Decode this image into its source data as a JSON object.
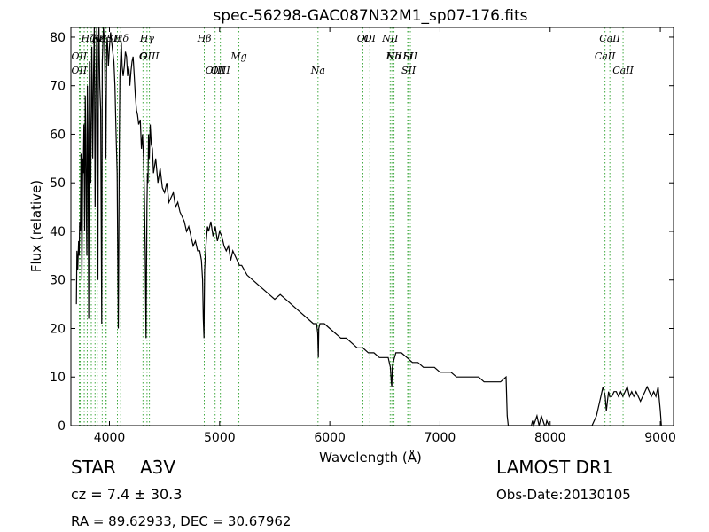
{
  "chart_data": {
    "type": "line",
    "title": "spec-56298-GAC087N32M1_sp07-176.fits",
    "xlabel": "Wavelength (Å)",
    "ylabel": "Flux (relative)",
    "xlim": [
      3650,
      9120
    ],
    "ylim": [
      0,
      82
    ],
    "xticks": [
      4000,
      5000,
      6000,
      7000,
      8000,
      9000
    ],
    "yticks": [
      0,
      10,
      20,
      30,
      40,
      50,
      60,
      70,
      80
    ],
    "grid": false,
    "line_color": "#000000",
    "marker_color": "#2ca02c",
    "series": [
      {
        "x": [
          3700,
          3705,
          3712,
          3720,
          3725,
          3730,
          3736,
          3742,
          3750,
          3758,
          3762,
          3768,
          3775,
          3780,
          3785,
          3790,
          3795,
          3800,
          3805,
          3812,
          3818,
          3822,
          3830,
          3835,
          3840,
          3848,
          3855,
          3862,
          3870,
          3878,
          3885,
          3890,
          3895,
          3900,
          3905,
          3912,
          3920,
          3930,
          3935,
          3945,
          3955,
          3960,
          3968,
          3975,
          3980,
          3990,
          4000,
          4010,
          4020,
          4030,
          4040,
          4050,
          4060,
          4070,
          4080,
          4090,
          4095,
          4102,
          4108,
          4115,
          4125,
          4135,
          4145,
          4155,
          4165,
          4175,
          4185,
          4195,
          4205,
          4215,
          4225,
          4235,
          4245,
          4255,
          4265,
          4280,
          4290,
          4300,
          4310,
          4318,
          4325,
          4332,
          4340,
          4345,
          4350,
          4355,
          4362,
          4370,
          4380,
          4390,
          4400,
          4420,
          4440,
          4460,
          4480,
          4500,
          4520,
          4540,
          4560,
          4580,
          4600,
          4620,
          4640,
          4660,
          4680,
          4700,
          4720,
          4740,
          4760,
          4780,
          4800,
          4820,
          4835,
          4845,
          4852,
          4858,
          4861,
          4864,
          4870,
          4878,
          4890,
          4900,
          4920,
          4940,
          4960,
          4980,
          5000,
          5020,
          5040,
          5060,
          5080,
          5100,
          5120,
          5140,
          5160,
          5180,
          5200,
          5250,
          5300,
          5350,
          5400,
          5450,
          5500,
          5550,
          5600,
          5650,
          5700,
          5750,
          5800,
          5850,
          5880,
          5890,
          5896,
          5900,
          5910,
          5950,
          6000,
          6050,
          6100,
          6150,
          6200,
          6250,
          6300,
          6350,
          6400,
          6450,
          6500,
          6530,
          6550,
          6558,
          6563,
          6568,
          6575,
          6600,
          6650,
          6700,
          6750,
          6800,
          6850,
          6900,
          6950,
          7000,
          7050,
          7100,
          7150,
          7200,
          7250,
          7300,
          7350,
          7400,
          7450,
          7500,
          7550,
          7600,
          7610,
          7620,
          7625,
          7640,
          7700,
          7750,
          7800,
          7830,
          7840,
          7850,
          7880,
          7900,
          7910,
          7920,
          7950,
          7960,
          7970,
          7990,
          8000,
          8050,
          8100,
          8150,
          8200,
          8250,
          8300,
          8330,
          8350,
          8380,
          8400,
          8420,
          8440,
          8460,
          8480,
          8500,
          8510,
          8520,
          8530,
          8540,
          8560,
          8580,
          8600,
          8620,
          8640,
          8660,
          8680,
          8700,
          8720,
          8740,
          8760,
          8780,
          8800,
          8820,
          8840,
          8860,
          8880,
          8900,
          8920,
          8940,
          8960,
          8980,
          9000,
          9010
        ],
        "y": [
          25,
          36,
          32,
          38,
          35,
          42,
          40,
          56,
          30,
          55,
          52,
          62,
          40,
          68,
          60,
          45,
          35,
          70,
          60,
          22,
          75,
          65,
          50,
          68,
          78,
          55,
          72,
          82,
          45,
          70,
          82,
          60,
          30,
          78,
          82,
          70,
          65,
          21,
          75,
          82,
          79,
          70,
          55,
          78,
          80,
          74,
          78,
          81,
          79,
          77,
          75,
          70,
          60,
          52,
          20,
          60,
          72,
          76,
          79,
          74,
          72,
          74,
          77,
          76,
          72,
          74,
          70,
          73,
          75,
          76,
          72,
          68,
          65,
          64,
          62,
          63,
          57,
          60,
          55,
          47,
          35,
          18,
          45,
          52,
          50,
          60,
          55,
          62,
          58,
          57,
          52,
          55,
          50,
          53,
          49,
          48,
          50,
          46,
          47,
          48,
          45,
          46,
          44,
          43,
          42,
          40,
          41,
          39,
          37,
          38,
          36,
          36,
          34,
          30,
          22,
          18,
          25,
          32,
          35,
          38,
          41,
          40,
          42,
          39,
          41,
          38,
          40,
          39,
          37,
          36,
          37,
          34,
          36,
          35,
          34,
          33,
          33,
          31,
          30,
          29,
          28,
          27,
          26,
          27,
          26,
          25,
          24,
          23,
          22,
          21,
          21,
          19,
          14,
          20,
          21,
          21,
          20,
          19,
          18,
          18,
          17,
          16,
          16,
          15,
          15,
          14,
          14,
          14,
          12,
          9,
          8,
          12,
          13,
          15,
          15,
          14,
          13,
          13,
          12,
          12,
          12,
          11,
          11,
          11,
          10,
          10,
          10,
          10,
          10,
          9,
          9,
          9,
          9,
          10,
          2,
          0,
          0,
          0,
          0,
          0,
          0,
          0,
          1,
          0,
          2,
          0,
          1,
          2,
          0,
          0,
          1,
          0,
          0,
          0,
          0,
          0,
          0,
          0,
          0,
          0,
          0,
          0,
          1,
          2,
          4,
          6,
          8,
          6,
          3,
          5,
          7,
          6,
          6,
          7,
          7,
          6,
          7,
          6,
          7,
          8,
          6,
          7,
          6,
          7,
          6,
          5,
          6,
          7,
          8,
          7,
          6,
          7,
          6,
          8,
          3,
          0
        ]
      }
    ],
    "lines": [
      {
        "x": 3727,
        "label": "OII"
      },
      {
        "x": 3735,
        "label": "OII"
      },
      {
        "x": 3750,
        "label": ""
      },
      {
        "x": 3771,
        "label": ""
      },
      {
        "x": 3798,
        "label": ""
      },
      {
        "x": 3835,
        "label": ""
      },
      {
        "x": 3869,
        "label": "NeIII"
      },
      {
        "x": 3889,
        "label": "Hζ"
      },
      {
        "x": 3934,
        "label": "K"
      },
      {
        "x": 3969,
        "label": "H"
      },
      {
        "x": 3970,
        "label": "Hε"
      },
      {
        "x": 4072,
        "label": "SII"
      },
      {
        "x": 4102,
        "label": "Hδ"
      },
      {
        "x": 4304,
        "label": "G"
      },
      {
        "x": 4341,
        "label": "Hγ"
      },
      {
        "x": 4363,
        "label": "OIII"
      },
      {
        "x": 4861,
        "label": "Hβ"
      },
      {
        "x": 4959,
        "label": "OIII"
      },
      {
        "x": 5007,
        "label": "OIII"
      },
      {
        "x": 5175,
        "label": "Mg"
      },
      {
        "x": 5893,
        "label": "Na"
      },
      {
        "x": 6300,
        "label": "OI"
      },
      {
        "x": 6363,
        "label": "OI"
      },
      {
        "x": 6548,
        "label": "NII"
      },
      {
        "x": 6563,
        "label": "Hα"
      },
      {
        "x": 6583,
        "label": "NII"
      },
      {
        "x": 6707,
        "label": "Li"
      },
      {
        "x": 6716,
        "label": "SII"
      },
      {
        "x": 6731,
        "label": "SII"
      },
      {
        "x": 8498,
        "label": "CaII"
      },
      {
        "x": 8542,
        "label": "CaII"
      },
      {
        "x": 8662,
        "label": "CaII"
      }
    ],
    "line_labels": [
      {
        "text": "Hζ",
        "x": 3805
      },
      {
        "text": "OII",
        "x": 3725
      },
      {
        "text": "OII",
        "x": 3725
      },
      {
        "text": "K",
        "x": 3880
      },
      {
        "text": "H",
        "x": 3940
      },
      {
        "text": "Hε",
        "x": 3900
      },
      {
        "text": "Hδ",
        "x": 4110
      },
      {
        "text": "SII",
        "x": 4040
      },
      {
        "text": "OIII",
        "x": 4363
      },
      {
        "text": "Hγ",
        "x": 4341
      },
      {
        "text": "G",
        "x": 4304
      },
      {
        "text": "OIII",
        "x": 5007
      },
      {
        "text": "Hβ",
        "x": 4861
      },
      {
        "text": "OIII",
        "x": 4959
      },
      {
        "text": "Mg",
        "x": 5175
      },
      {
        "text": "Na",
        "x": 5893
      },
      {
        "text": "OI",
        "x": 6300
      },
      {
        "text": "OI",
        "x": 6363
      },
      {
        "text": "Hα",
        "x": 6583
      },
      {
        "text": "SII",
        "x": 6716
      },
      {
        "text": "NII",
        "x": 6548
      },
      {
        "text": "Li",
        "x": 6707
      },
      {
        "text": "NII",
        "x": 6583
      },
      {
        "text": "SII",
        "x": 6731
      },
      {
        "text": "CaII",
        "x": 8542
      },
      {
        "text": "CaII",
        "x": 8498
      },
      {
        "text": "CaII",
        "x": 8662
      }
    ]
  },
  "info": {
    "class_label": "STAR",
    "subclass_label": "A3V",
    "cz_label": "cz = 7.4 ± 30.3",
    "survey_label": "LAMOST DR1",
    "obs_date_label": "Obs-Date:20130105",
    "coords_label": "RA = 89.62933, DEC = 30.67962"
  }
}
